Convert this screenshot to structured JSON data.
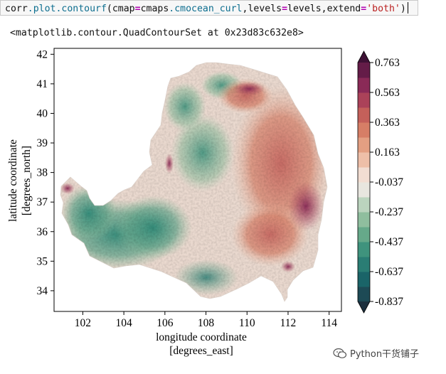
{
  "code_cell": {
    "tokens": [
      {
        "text": "corr",
        "cls": ""
      },
      {
        "text": ".plot.contourf",
        "cls": "tk-fn"
      },
      {
        "text": "(cmap",
        "cls": ""
      },
      {
        "text": "=",
        "cls": "tk-eq"
      },
      {
        "text": "cmaps",
        "cls": ""
      },
      {
        "text": ".cmocean_curl",
        "cls": "tk-fn"
      },
      {
        "text": ",levels",
        "cls": ""
      },
      {
        "text": "=",
        "cls": "tk-eq"
      },
      {
        "text": "levels,extend",
        "cls": ""
      },
      {
        "text": "=",
        "cls": "tk-eq"
      },
      {
        "text": "'both'",
        "cls": "tk-str"
      },
      {
        "text": ")",
        "cls": ""
      }
    ]
  },
  "output_text": "<matplotlib.contour.QuadContourSet at 0x23d83c632e8>",
  "chart_data": {
    "type": "heatmap",
    "xlabel_line1": "longitude coordinate",
    "xlabel_line2": "[degrees_east]",
    "ylabel_line1": "latitude coordinate",
    "ylabel_line2": "[degrees_north]",
    "xlim": [
      100.6,
      114.6
    ],
    "ylim": [
      33.3,
      42.2
    ],
    "xticks": [
      102,
      104,
      106,
      108,
      110,
      112,
      114
    ],
    "yticks": [
      34,
      35,
      36,
      37,
      38,
      39,
      40,
      41,
      42
    ],
    "colorbar": {
      "levels": [
        -0.837,
        -0.737,
        -0.637,
        -0.537,
        -0.437,
        -0.337,
        -0.237,
        -0.137,
        -0.037,
        0.063,
        0.163,
        0.263,
        0.363,
        0.463,
        0.563,
        0.663,
        0.763
      ],
      "tick_labels": [
        "0.763",
        "0.563",
        "0.363",
        "0.163",
        "-0.037",
        "-0.237",
        "-0.437",
        "-0.637",
        "-0.837"
      ],
      "tick_values": [
        0.763,
        0.563,
        0.363,
        0.163,
        -0.037,
        -0.237,
        -0.437,
        -0.637,
        -0.837
      ],
      "extend": "both",
      "colors": [
        "#1b2f3d",
        "#1d4a55",
        "#1a6468",
        "#2a7d74",
        "#3f937d",
        "#66a98a",
        "#8fbe9e",
        "#bbd4be",
        "#e8e6df",
        "#f2ddd2",
        "#eebfa8",
        "#e39f82",
        "#d67e66",
        "#c4605a",
        "#ab4259",
        "#8a2a57",
        "#641c48",
        "#3e1135"
      ]
    }
  },
  "watermark": "Python干货铺子",
  "watermark_icon": "wechat-icon"
}
